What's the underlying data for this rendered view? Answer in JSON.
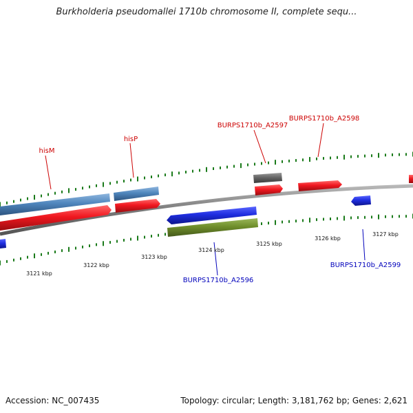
{
  "title": "Burkholderia pseudomallei 1710b chromosome II, complete sequ...",
  "footer": {
    "accession": "Accession: NC_007435",
    "summary": "Topology: circular; Length: 3,181,762 bp; Genes: 2,621"
  },
  "colors": {
    "forward_cds": "#e8131b",
    "forward_gene": "#4f86bd",
    "reverse_cds": "#1f2ee0",
    "reverse_gene": "#6f8e2b",
    "pseudo": "#666666",
    "tick": "#1a7a1a",
    "backbone": "#7a7a7a",
    "forward_label": "#cc0000",
    "reverse_label": "#0000bb"
  },
  "scale_labels": [
    "3121 kbp",
    "3122 kbp",
    "3123 kbp",
    "3124 kbp",
    "3125 kbp",
    "3126 kbp",
    "3127 kbp"
  ],
  "gene_labels": [
    {
      "text": "hisM",
      "strand": "forward"
    },
    {
      "text": "hisP",
      "strand": "forward"
    },
    {
      "text": "BURPS1710b_A2597",
      "strand": "forward"
    },
    {
      "text": "BURPS1710b_A2598",
      "strand": "forward"
    },
    {
      "text": "BURPS1710b_A2596",
      "strand": "reverse"
    },
    {
      "text": "BURPS1710b_A2599",
      "strand": "reverse"
    }
  ]
}
